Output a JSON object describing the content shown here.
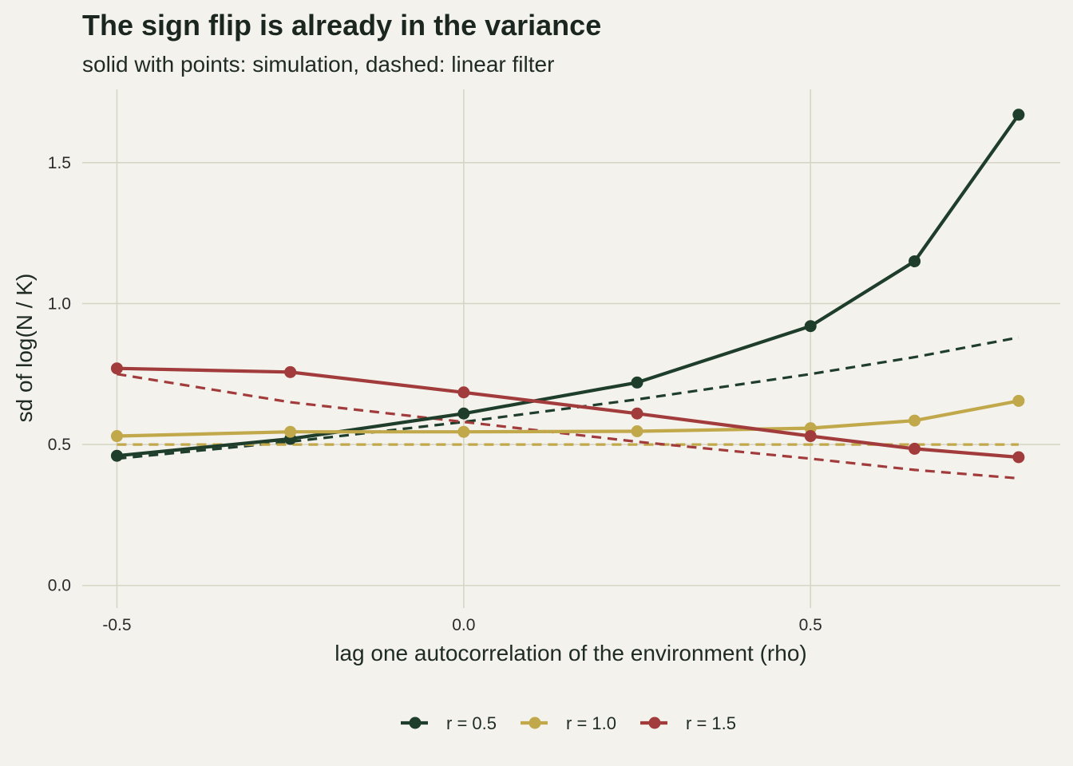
{
  "chart_data": {
    "type": "line",
    "title": "The sign flip is already in the variance",
    "subtitle": "solid with points: simulation, dashed: linear filter",
    "xlabel": "lag one autocorrelation of the environment (rho)",
    "ylabel": "sd of log(N / K)",
    "xlim": [
      -0.55,
      0.86
    ],
    "ylim": [
      -0.08,
      1.76
    ],
    "x_ticks": [
      -0.5,
      0.0,
      0.5
    ],
    "x_tick_labels": [
      "-0.5",
      "0.0",
      "0.5"
    ],
    "y_ticks": [
      0.0,
      0.5,
      1.0,
      1.5
    ],
    "y_tick_labels": [
      "0.0",
      "0.5",
      "1.0",
      "1.5"
    ],
    "grid": true,
    "legend_position": "bottom",
    "x": [
      -0.5,
      -0.25,
      0.0,
      0.25,
      0.5,
      0.65,
      0.8
    ],
    "series": [
      {
        "name": "r = 0.5",
        "color": "#1e3d2b",
        "simulation": [
          0.46,
          0.52,
          0.61,
          0.72,
          0.92,
          1.15,
          1.67
        ],
        "linear_filter": [
          0.45,
          0.51,
          0.58,
          0.66,
          0.75,
          0.81,
          0.88
        ]
      },
      {
        "name": "r = 1.0",
        "color": "#c1a84a",
        "simulation": [
          0.53,
          0.545,
          0.545,
          0.547,
          0.558,
          0.585,
          0.655
        ],
        "linear_filter": [
          0.5,
          0.5,
          0.5,
          0.5,
          0.5,
          0.5,
          0.5
        ]
      },
      {
        "name": "r = 1.5",
        "color": "#a23b3b",
        "simulation": [
          0.77,
          0.757,
          0.685,
          0.61,
          0.53,
          0.485,
          0.455
        ],
        "linear_filter": [
          0.75,
          0.65,
          0.58,
          0.51,
          0.45,
          0.41,
          0.38
        ]
      }
    ]
  }
}
